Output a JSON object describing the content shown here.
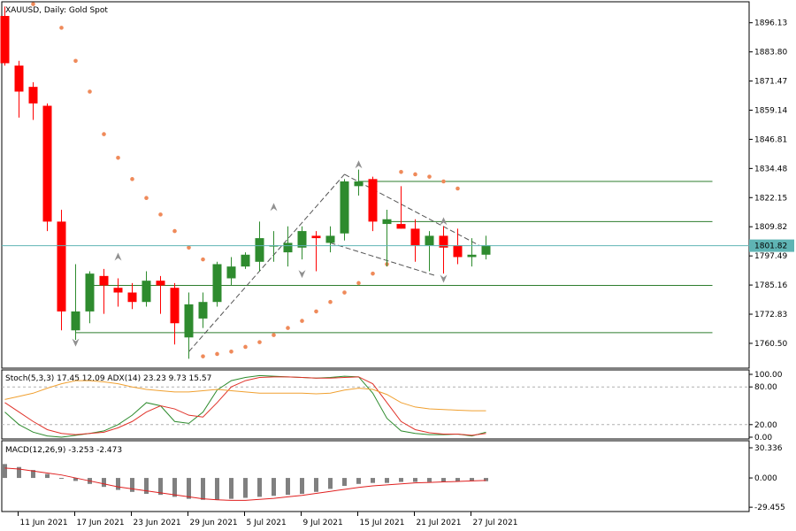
{
  "chart_data": [
    {
      "type": "candlestick",
      "symbol": "XAUUSD",
      "timeframe": "Daily",
      "description": "Gold Spot",
      "ylim": [
        1750,
        1905
      ],
      "y_ticks": [
        1896.13,
        1883.8,
        1871.47,
        1859.14,
        1846.81,
        1834.48,
        1822.15,
        1809.82,
        1797.49,
        1785.16,
        1772.83,
        1760.5
      ],
      "y_tick_labels": [
        "1896.13",
        "1883.80",
        "1871.47",
        "1859.14",
        "1846.81",
        "1834.48",
        "1822.15",
        "1809.82",
        "1797.49",
        "1785.16",
        "1772.83",
        "1760.50"
      ],
      "current_price": 1801.82,
      "current_price_label": "1801.82",
      "colors": {
        "up": "#2e8b2e",
        "down": "#ff0000",
        "price_line": "#5fb4b4",
        "sar": "#ef8a5a",
        "hline": "#2e7d2e",
        "trend": "#555555",
        "fractal": "#909090"
      },
      "candles": [
        {
          "date": "2021-06-10",
          "open": 1899,
          "high": 1903,
          "low": 1878,
          "close": 1879
        },
        {
          "date": "2021-06-11",
          "open": 1878,
          "high": 1880,
          "low": 1856,
          "close": 1867
        },
        {
          "date": "2021-06-14",
          "open": 1869,
          "high": 1871,
          "low": 1855,
          "close": 1862
        },
        {
          "date": "2021-06-15",
          "open": 1861,
          "high": 1862,
          "low": 1808,
          "close": 1812
        },
        {
          "date": "2021-06-16",
          "open": 1812,
          "high": 1817,
          "low": 1766,
          "close": 1774
        },
        {
          "date": "2021-06-17",
          "open": 1766,
          "high": 1794,
          "low": 1762,
          "close": 1774
        },
        {
          "date": "2021-06-18",
          "open": 1774,
          "high": 1791,
          "low": 1769,
          "close": 1790
        },
        {
          "date": "2021-06-21",
          "open": 1789,
          "high": 1792,
          "low": 1773,
          "close": 1785
        },
        {
          "date": "2021-06-22",
          "open": 1784,
          "high": 1788,
          "low": 1776,
          "close": 1782
        },
        {
          "date": "2021-06-23",
          "open": 1782,
          "high": 1786,
          "low": 1775,
          "close": 1778
        },
        {
          "date": "2021-06-24",
          "open": 1778,
          "high": 1791,
          "low": 1776,
          "close": 1787
        },
        {
          "date": "2021-06-25",
          "open": 1787,
          "high": 1789,
          "low": 1773,
          "close": 1785
        },
        {
          "date": "2021-06-28",
          "open": 1784,
          "high": 1786,
          "low": 1760,
          "close": 1769
        },
        {
          "date": "2021-06-29",
          "open": 1763,
          "high": 1782,
          "low": 1754,
          "close": 1777
        },
        {
          "date": "2021-06-30",
          "open": 1771,
          "high": 1782,
          "low": 1767,
          "close": 1778
        },
        {
          "date": "2021-07-01",
          "open": 1778,
          "high": 1795,
          "low": 1776,
          "close": 1794
        },
        {
          "date": "2021-07-02",
          "open": 1788,
          "high": 1797,
          "low": 1785,
          "close": 1793
        },
        {
          "date": "2021-07-05",
          "open": 1793,
          "high": 1799,
          "low": 1792,
          "close": 1798
        },
        {
          "date": "2021-07-06",
          "open": 1795,
          "high": 1812,
          "low": 1791,
          "close": 1805
        },
        {
          "date": "2021-07-07",
          "open": 1802,
          "high": 1808,
          "low": 1795,
          "close": 1802
        },
        {
          "date": "2021-07-08",
          "open": 1799,
          "high": 1810,
          "low": 1793,
          "close": 1803
        },
        {
          "date": "2021-07-09",
          "open": 1801,
          "high": 1810,
          "low": 1796,
          "close": 1808
        },
        {
          "date": "2021-07-12",
          "open": 1806,
          "high": 1808,
          "low": 1791,
          "close": 1805
        },
        {
          "date": "2021-07-13",
          "open": 1803,
          "high": 1810,
          "low": 1799,
          "close": 1806
        },
        {
          "date": "2021-07-14",
          "open": 1807,
          "high": 1830,
          "low": 1804,
          "close": 1829
        },
        {
          "date": "2021-07-15",
          "open": 1827,
          "high": 1834,
          "low": 1823,
          "close": 1829
        },
        {
          "date": "2021-07-16",
          "open": 1830,
          "high": 1831,
          "low": 1808,
          "close": 1812
        },
        {
          "date": "2021-07-19",
          "open": 1811,
          "high": 1817,
          "low": 1793,
          "close": 1813
        },
        {
          "date": "2021-07-20",
          "open": 1811,
          "high": 1827,
          "low": 1809,
          "close": 1809
        },
        {
          "date": "2021-07-21",
          "open": 1809,
          "high": 1813,
          "low": 1795,
          "close": 1802
        },
        {
          "date": "2021-07-22",
          "open": 1802,
          "high": 1808,
          "low": 1791,
          "close": 1806
        },
        {
          "date": "2021-07-23",
          "open": 1806,
          "high": 1810,
          "low": 1790,
          "close": 1801
        },
        {
          "date": "2021-07-26",
          "open": 1802,
          "high": 1809,
          "low": 1794,
          "close": 1797
        },
        {
          "date": "2021-07-27",
          "open": 1797,
          "high": 1805,
          "low": 1793,
          "close": 1798
        },
        {
          "date": "2021-07-28",
          "open": 1798,
          "high": 1806,
          "low": 1796,
          "close": 1802
        }
      ],
      "parabolic_sar": [
        {
          "index": 2,
          "value": 1904
        },
        {
          "index": 4,
          "value": 1894
        },
        {
          "index": 5,
          "value": 1880
        },
        {
          "index": 6,
          "value": 1867
        },
        {
          "index": 7,
          "value": 1849
        },
        {
          "index": 8,
          "value": 1839
        },
        {
          "index": 9,
          "value": 1830
        },
        {
          "index": 10,
          "value": 1822
        },
        {
          "index": 11,
          "value": 1815
        },
        {
          "index": 12,
          "value": 1808
        },
        {
          "index": 13,
          "value": 1801
        },
        {
          "index": 14,
          "value": 1796
        },
        {
          "index": 15,
          "value": 1791
        },
        {
          "index": 14,
          "value": 1755
        },
        {
          "index": 15,
          "value": 1756
        },
        {
          "index": 16,
          "value": 1757
        },
        {
          "index": 17,
          "value": 1759
        },
        {
          "index": 18,
          "value": 1761
        },
        {
          "index": 19,
          "value": 1764
        },
        {
          "index": 20,
          "value": 1767
        },
        {
          "index": 21,
          "value": 1770
        },
        {
          "index": 22,
          "value": 1774
        },
        {
          "index": 23,
          "value": 1778
        },
        {
          "index": 24,
          "value": 1782
        },
        {
          "index": 25,
          "value": 1786
        },
        {
          "index": 26,
          "value": 1790
        },
        {
          "index": 27,
          "value": 1794
        },
        {
          "index": 28,
          "value": 1833
        },
        {
          "index": 29,
          "value": 1832
        },
        {
          "index": 30,
          "value": 1831
        },
        {
          "index": 31,
          "value": 1829
        },
        {
          "index": 32,
          "value": 1826
        }
      ],
      "horizontal_lines": [
        {
          "from_index": 25,
          "to_index": 50,
          "value": 1829
        },
        {
          "from_index": 27,
          "to_index": 50,
          "value": 1812
        },
        {
          "from_index": 6,
          "to_index": 50,
          "value": 1785
        },
        {
          "from_index": 5,
          "to_index": 50,
          "value": 1765
        }
      ],
      "trend_lines": [
        {
          "x1": 13,
          "y1": 1757,
          "x2": 24,
          "y2": 1832
        },
        {
          "x1": 24,
          "y1": 1832,
          "x2": 33.5,
          "y2": 1802
        },
        {
          "x1": 23,
          "y1": 1803,
          "x2": 30.5,
          "y2": 1789
        }
      ],
      "fractals": [
        {
          "index": 5,
          "value": 1761,
          "dir": "down"
        },
        {
          "index": 8,
          "value": 1797,
          "dir": "up"
        },
        {
          "index": 19,
          "value": 1818,
          "dir": "up"
        },
        {
          "index": 21,
          "value": 1790,
          "dir": "down"
        },
        {
          "index": 25,
          "value": 1836,
          "dir": "up"
        },
        {
          "index": 31,
          "value": 1812,
          "dir": "up"
        },
        {
          "index": 31,
          "value": 1788,
          "dir": "down"
        }
      ]
    },
    {
      "type": "line",
      "name": "Stochastic + ADX",
      "legend_text": "Stoch(5,3,3) 17.45 12.09 ADX(14) 23.23 9.73 15.57",
      "ylim": [
        0,
        100
      ],
      "y_ticks": [
        100,
        80,
        20,
        0
      ],
      "y_tick_labels": [
        "100.00",
        "80.00",
        "20.00",
        "0.00"
      ],
      "levels": [
        80,
        20
      ],
      "series": [
        {
          "color": "#2e8b2e",
          "values": [
            40,
            20,
            8,
            2,
            0,
            3,
            6,
            10,
            20,
            35,
            55,
            50,
            25,
            22,
            40,
            75,
            90,
            95,
            98,
            97,
            96,
            95,
            94,
            95,
            97,
            96,
            70,
            30,
            10,
            6,
            4,
            4,
            5,
            2,
            8
          ]
        },
        {
          "color": "#e0332a",
          "values": [
            55,
            40,
            25,
            12,
            6,
            4,
            6,
            8,
            15,
            25,
            40,
            50,
            45,
            35,
            32,
            55,
            80,
            90,
            95,
            96,
            96,
            95,
            94,
            94,
            95,
            96,
            85,
            55,
            25,
            12,
            7,
            5,
            5,
            3,
            6
          ]
        },
        {
          "color": "#f0a030",
          "values": [
            60,
            65,
            70,
            78,
            85,
            90,
            90,
            88,
            85,
            80,
            76,
            74,
            72,
            72,
            74,
            76,
            74,
            72,
            70,
            70,
            70,
            70,
            69,
            70,
            75,
            78,
            76,
            68,
            55,
            48,
            45,
            44,
            43,
            42,
            42
          ]
        }
      ]
    },
    {
      "type": "bar",
      "name": "MACD",
      "legend_text": "MACD(12,26,9) -3.253 -2.473",
      "ylim": [
        -32,
        33
      ],
      "y_ticks": [
        30.336,
        0,
        -29.455
      ],
      "y_tick_labels": [
        "30.336",
        "0.000",
        "-29.455"
      ],
      "colors": {
        "bars": "#808080",
        "signal": "#e02020"
      },
      "values": [
        14,
        11,
        8,
        4,
        0,
        -3,
        -6,
        -9,
        -12,
        -14,
        -16,
        -17,
        -19,
        -21,
        -22,
        -22,
        -21,
        -20,
        -19,
        -18,
        -17,
        -16,
        -14,
        -11,
        -8,
        -6,
        -5,
        -5,
        -4,
        -4,
        -4,
        -4,
        -3.5,
        -3.3,
        -3.253
      ],
      "signal": [
        10,
        9,
        7,
        5,
        3,
        0,
        -3,
        -6,
        -9,
        -11,
        -13,
        -15,
        -17,
        -19,
        -21,
        -22,
        -22.5,
        -22.5,
        -21.5,
        -20.5,
        -19,
        -17.5,
        -15.5,
        -13.5,
        -11.5,
        -9.5,
        -8,
        -7,
        -6,
        -5,
        -4.5,
        -4,
        -3.5,
        -3,
        -2.473
      ]
    }
  ],
  "x_axis": {
    "labels": [
      {
        "index": 1,
        "text": "11 Jun 2021"
      },
      {
        "index": 5,
        "text": "17 Jun 2021"
      },
      {
        "index": 9,
        "text": "23 Jun 2021"
      },
      {
        "index": 13,
        "text": "29 Jun 2021"
      },
      {
        "index": 17,
        "text": "5 Jul 2021"
      },
      {
        "index": 21,
        "text": "9 Jul 2021"
      },
      {
        "index": 25,
        "text": "15 Jul 2021"
      },
      {
        "index": 29,
        "text": "21 Jul 2021"
      },
      {
        "index": 33,
        "text": "27 Jul 2021"
      }
    ]
  }
}
